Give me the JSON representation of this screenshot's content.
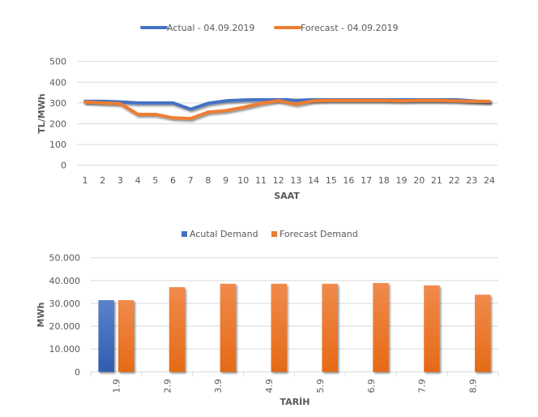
{
  "chart_data": [
    {
      "type": "line",
      "title": "",
      "xlabel": "SAAT",
      "ylabel": "TL/MWh",
      "ylim": [
        0,
        500
      ],
      "yticks": [
        "0",
        "100",
        "200",
        "300",
        "400",
        "500"
      ],
      "grid": true,
      "legend_position": "top",
      "x": [
        "1",
        "2",
        "3",
        "4",
        "5",
        "6",
        "7",
        "8",
        "9",
        "10",
        "11",
        "12",
        "13",
        "14",
        "15",
        "16",
        "17",
        "18",
        "19",
        "20",
        "21",
        "22",
        "23",
        "24"
      ],
      "series": [
        {
          "name": "Actual - 04.09.2019",
          "color": "#4472C4",
          "values": [
            308,
            308,
            305,
            300,
            300,
            300,
            270,
            298,
            310,
            314,
            316,
            318,
            312,
            316,
            318,
            318,
            318,
            318,
            316,
            316,
            316,
            316,
            310,
            305
          ]
        },
        {
          "name": "Forecast - 04.09.2019",
          "color": "#ED7D31",
          "values": [
            305,
            300,
            297,
            245,
            245,
            228,
            225,
            256,
            263,
            279,
            298,
            311,
            294,
            310,
            312,
            312,
            312,
            312,
            310,
            312,
            312,
            310,
            308,
            308
          ]
        }
      ]
    },
    {
      "type": "bar",
      "title": "",
      "xlabel": "TARİH",
      "ylabel": "MWh",
      "ylim": [
        0,
        50000
      ],
      "yticks": [
        "0",
        "10.000",
        "20.000",
        "30.000",
        "40.000",
        "50.000"
      ],
      "grid": true,
      "legend_position": "top",
      "categories": [
        "1.9",
        "2.9",
        "3.9",
        "4.9",
        "5.9",
        "6.9",
        "7.9",
        "8.9"
      ],
      "series": [
        {
          "name": "Acutal Demand",
          "color": "#4472C4",
          "values": [
            31400,
            null,
            null,
            null,
            null,
            null,
            null,
            null
          ]
        },
        {
          "name": "Forecast Demand",
          "color": "#ED7D31",
          "values": [
            31400,
            37100,
            38600,
            38600,
            38600,
            38900,
            37900,
            33800
          ]
        }
      ]
    }
  ]
}
